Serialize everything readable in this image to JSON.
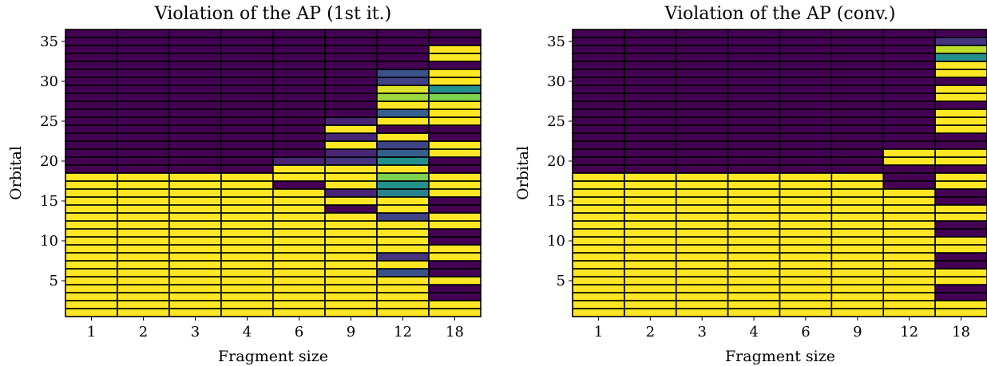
{
  "figure": {
    "panels": [
      "left",
      "right"
    ]
  },
  "colors": {
    "viridis": [
      "#440154",
      "#482878",
      "#3e4989",
      "#31688e",
      "#26828e",
      "#1f9e89",
      "#35b779",
      "#6ece58",
      "#b5de2b",
      "#fde725"
    ],
    "cell_edge": "#000000",
    "background": "#ffffff"
  },
  "chart_data": [
    {
      "type": "heatmap",
      "title": "Violation of the AP (1st it.)",
      "xlabel": "Fragment size",
      "ylabel": "Orbital",
      "categories": [
        "1",
        "2",
        "3",
        "4",
        "6",
        "9",
        "12",
        "18"
      ],
      "y_range": [
        1,
        36
      ],
      "yticks": [
        5,
        10,
        15,
        20,
        25,
        30,
        35
      ],
      "colormap": "viridis",
      "value_range": [
        0,
        1
      ],
      "columns": [
        {
          "name": "1",
          "values": [
            1,
            1,
            1,
            1,
            1,
            1,
            1,
            1,
            1,
            1,
            1,
            1,
            1,
            1,
            1,
            1,
            1,
            1,
            0,
            0,
            0,
            0,
            0,
            0,
            0,
            0,
            0,
            0,
            0,
            0,
            0,
            0,
            0,
            0,
            0,
            0
          ]
        },
        {
          "name": "2",
          "values": [
            1,
            1,
            1,
            1,
            1,
            1,
            1,
            1,
            1,
            1,
            1,
            1,
            1,
            1,
            1,
            1,
            1,
            1,
            0,
            0,
            0,
            0,
            0,
            0,
            0,
            0,
            0,
            0,
            0,
            0,
            0,
            0,
            0,
            0,
            0,
            0
          ]
        },
        {
          "name": "3",
          "values": [
            1,
            1,
            1,
            1,
            1,
            1,
            1,
            1,
            1,
            1,
            1,
            1,
            1,
            1,
            1,
            1,
            1,
            1,
            0,
            0,
            0,
            0,
            0,
            0,
            0,
            0,
            0,
            0,
            0,
            0,
            0,
            0,
            0,
            0,
            0,
            0
          ]
        },
        {
          "name": "4",
          "values": [
            1,
            1,
            1,
            1,
            1,
            1,
            1,
            1,
            1,
            1,
            1,
            1,
            1,
            1,
            1,
            1,
            1,
            1,
            0,
            0,
            0,
            0,
            0,
            0,
            0,
            0,
            0,
            0,
            0,
            0,
            0,
            0,
            0,
            0,
            0,
            0
          ]
        },
        {
          "name": "6",
          "values": [
            1,
            1,
            1,
            1,
            1,
            1,
            1,
            1,
            1,
            1,
            1,
            1,
            1,
            1,
            1,
            1,
            0,
            1,
            1,
            0.1,
            0,
            0,
            0,
            0,
            0,
            0,
            0,
            0,
            0,
            0,
            0,
            0,
            0,
            0,
            0,
            0
          ]
        },
        {
          "name": "9",
          "values": [
            1,
            1,
            1,
            1,
            1,
            1,
            1,
            1,
            1,
            1,
            1,
            1,
            1,
            0,
            1,
            0.1,
            1,
            1,
            1,
            0.15,
            0.1,
            1,
            0.1,
            1,
            0.1,
            0,
            0,
            0,
            0,
            0,
            0,
            0,
            0,
            0,
            0,
            0
          ]
        },
        {
          "name": "12",
          "values": [
            1,
            1,
            1,
            1,
            1,
            0.25,
            1,
            0.15,
            1,
            1,
            1,
            1,
            0.2,
            1,
            1,
            0.45,
            0.5,
            0.8,
            1,
            0.5,
            0.3,
            0.2,
            1,
            0,
            1,
            0.3,
            1,
            0.85,
            0.95,
            0.2,
            0.25,
            0,
            0,
            0,
            0,
            0
          ]
        },
        {
          "name": "18",
          "values": [
            1,
            1,
            0,
            0,
            1,
            0,
            0,
            1,
            1,
            0,
            0,
            1,
            1,
            0,
            0,
            1,
            1,
            1,
            0,
            0,
            1,
            1,
            0,
            0,
            1,
            1,
            1,
            0.8,
            0.5,
            1,
            1,
            0,
            1,
            1,
            0,
            0
          ]
        }
      ]
    },
    {
      "type": "heatmap",
      "title": "Violation of the AP (conv.)",
      "xlabel": "Fragment size",
      "ylabel": "Orbital",
      "categories": [
        "1",
        "2",
        "3",
        "4",
        "6",
        "9",
        "12",
        "18"
      ],
      "y_range": [
        1,
        36
      ],
      "yticks": [
        5,
        10,
        15,
        20,
        25,
        30,
        35
      ],
      "colormap": "viridis",
      "value_range": [
        0,
        1
      ],
      "columns": [
        {
          "name": "1",
          "values": [
            1,
            1,
            1,
            1,
            1,
            1,
            1,
            1,
            1,
            1,
            1,
            1,
            1,
            1,
            1,
            1,
            1,
            1,
            0,
            0,
            0,
            0,
            0,
            0,
            0,
            0,
            0,
            0,
            0,
            0,
            0,
            0,
            0,
            0,
            0,
            0
          ]
        },
        {
          "name": "2",
          "values": [
            1,
            1,
            1,
            1,
            1,
            1,
            1,
            1,
            1,
            1,
            1,
            1,
            1,
            1,
            1,
            1,
            1,
            1,
            0,
            0,
            0,
            0,
            0,
            0,
            0,
            0,
            0,
            0,
            0,
            0,
            0,
            0,
            0,
            0,
            0,
            0
          ]
        },
        {
          "name": "3",
          "values": [
            1,
            1,
            1,
            1,
            1,
            1,
            1,
            1,
            1,
            1,
            1,
            1,
            1,
            1,
            1,
            1,
            1,
            1,
            0,
            0,
            0,
            0,
            0,
            0,
            0,
            0,
            0,
            0,
            0,
            0,
            0,
            0,
            0,
            0,
            0,
            0
          ]
        },
        {
          "name": "4",
          "values": [
            1,
            1,
            1,
            1,
            1,
            1,
            1,
            1,
            1,
            1,
            1,
            1,
            1,
            1,
            1,
            1,
            1,
            1,
            0,
            0,
            0,
            0,
            0,
            0,
            0,
            0,
            0,
            0,
            0,
            0,
            0,
            0,
            0,
            0,
            0,
            0
          ]
        },
        {
          "name": "6",
          "values": [
            1,
            1,
            1,
            1,
            1,
            1,
            1,
            1,
            1,
            1,
            1,
            1,
            1,
            1,
            1,
            1,
            1,
            1,
            0,
            0,
            0,
            0,
            0,
            0,
            0,
            0,
            0,
            0,
            0,
            0,
            0,
            0,
            0,
            0,
            0,
            0
          ]
        },
        {
          "name": "9",
          "values": [
            1,
            1,
            1,
            1,
            1,
            1,
            1,
            1,
            1,
            1,
            1,
            1,
            1,
            1,
            1,
            1,
            1,
            1,
            0,
            0,
            0,
            0,
            0,
            0,
            0,
            0,
            0,
            0,
            0,
            0,
            0,
            0,
            0,
            0,
            0,
            0
          ]
        },
        {
          "name": "12",
          "values": [
            1,
            1,
            1,
            1,
            1,
            1,
            1,
            1,
            1,
            1,
            1,
            1,
            1,
            1,
            1,
            1,
            0,
            0,
            0,
            1,
            1,
            0,
            0,
            0,
            0,
            0,
            0,
            0,
            0,
            0,
            0,
            0,
            0,
            0,
            0,
            0
          ]
        },
        {
          "name": "18",
          "values": [
            1,
            1,
            0,
            0,
            1,
            1,
            0,
            0,
            1,
            1,
            0,
            0,
            1,
            1,
            0,
            0,
            1,
            1,
            0,
            1,
            1,
            0,
            0,
            1,
            1,
            1,
            0,
            1,
            1,
            0,
            1,
            1,
            0.5,
            0.9,
            0.15,
            0
          ]
        }
      ]
    }
  ]
}
